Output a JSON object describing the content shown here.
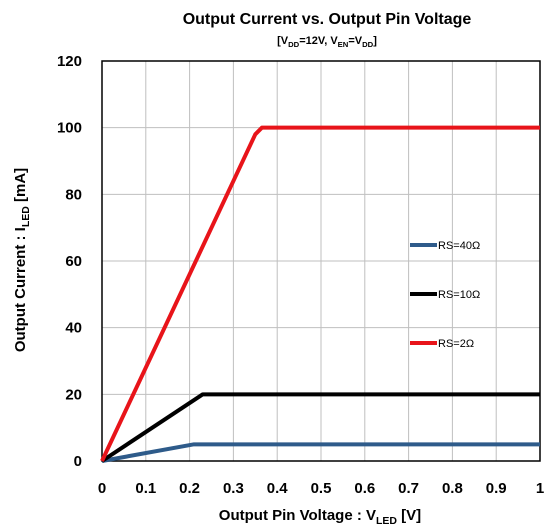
{
  "chart_data": {
    "type": "line",
    "title": "Output Current vs. Output Pin Voltage",
    "subtitle": {
      "open": "[V",
      "vdd_sub": "DD",
      "mid1": "=12V, V",
      "ven_sub": "EN",
      "mid2": "=V",
      "vdd2_sub": "DD",
      "close": "]"
    },
    "xlabel": {
      "main": "Output Pin Voltage : V",
      "sub": "LED",
      "unit": " [V]"
    },
    "ylabel": {
      "main": "Output Current : I",
      "sub": "LED",
      "unit": " [mA]"
    },
    "xlim": [
      0,
      1
    ],
    "ylim": [
      0,
      120
    ],
    "x_ticks": [
      0,
      0.1,
      0.2,
      0.3,
      0.4,
      0.5,
      0.6,
      0.7,
      0.8,
      0.9,
      1
    ],
    "x_tick_labels": [
      "0",
      "0.1",
      "0.2",
      "0.3",
      "0.4",
      "0.5",
      "0.6",
      "0.7",
      "0.8",
      "0.9",
      "1"
    ],
    "y_ticks": [
      0,
      20,
      40,
      60,
      80,
      100,
      120
    ],
    "y_tick_labels": [
      "0",
      "20",
      "40",
      "60",
      "80",
      "100",
      "120"
    ],
    "grid": true,
    "legend_position": "right",
    "series": [
      {
        "name": "RS=40Ω",
        "color": "#2e5b8a",
        "x": [
          0,
          0.21,
          1.0
        ],
        "y": [
          0,
          5,
          5
        ]
      },
      {
        "name": "RS=10Ω",
        "color": "#000000",
        "x": [
          0,
          0.23,
          1.0
        ],
        "y": [
          0,
          20,
          20
        ]
      },
      {
        "name": "RS=2Ω",
        "color": "#e8141a",
        "x": [
          0,
          0.35,
          0.365,
          1.0
        ],
        "y": [
          0,
          98,
          100,
          100
        ]
      }
    ]
  }
}
